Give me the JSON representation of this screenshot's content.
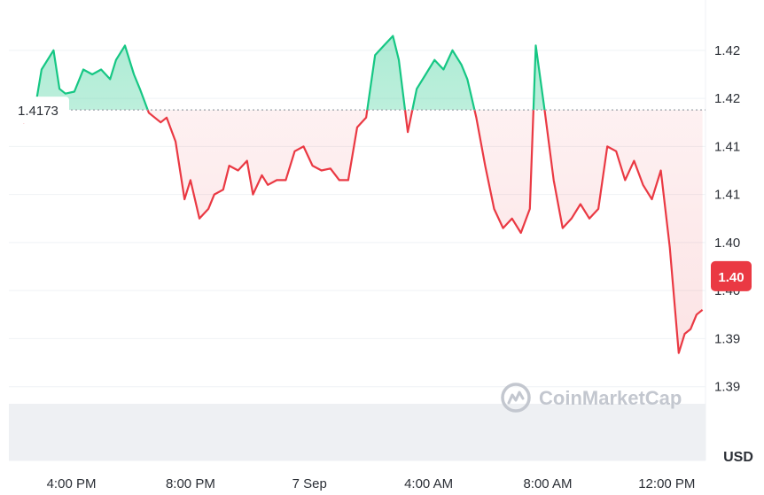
{
  "chart_data": {
    "type": "line",
    "title": "",
    "xlabel": "",
    "ylabel": "",
    "unit": "USD",
    "reference_value": 1.4173,
    "reference_label": "1.4173",
    "current_value": 1.4,
    "current_label": "1.40",
    "y_tick_labels": [
      "1.42",
      "1.42",
      "1.41",
      "1.41",
      "1.40",
      "1.40",
      "1.39",
      "1.39"
    ],
    "y_tick_values": [
      1.4235,
      1.4185,
      1.4135,
      1.4085,
      1.4035,
      1.3985,
      1.3935,
      1.3885
    ],
    "x_tick_labels": [
      "4:00 PM",
      "8:00 PM",
      "7 Sep",
      "4:00 AM",
      "8:00 AM",
      "12:00 PM"
    ],
    "x_tick_hours": [
      16,
      20,
      24,
      28,
      32,
      36
    ],
    "ylim": [
      1.3858,
      1.428
    ],
    "xlim": [
      13.9,
      37.3
    ],
    "grid": true,
    "colors": {
      "up": "#16c784",
      "down": "#ea3943",
      "up_fill": "#d5f5e8",
      "down_fill": "#fde4e5",
      "volume": "#eef0f3"
    },
    "watermark": "CoinMarketCap",
    "series": [
      {
        "x": [
          13.9,
          14.4,
          14.8,
          15.0,
          15.4,
          15.6,
          15.8,
          16.1,
          16.4,
          16.7,
          17.0,
          17.3,
          17.5,
          17.8,
          18.1,
          18.3,
          18.6,
          19.0,
          19.2,
          19.5,
          19.8,
          20.0,
          20.3,
          20.6,
          20.8,
          21.1,
          21.3,
          21.6,
          21.9,
          22.1,
          22.4,
          22.6,
          22.9,
          23.2,
          23.5,
          23.8,
          24.1,
          24.4,
          24.7,
          25.0,
          25.3,
          25.6,
          25.9,
          26.2,
          26.5,
          26.8,
          27.0,
          27.3,
          27.6,
          27.9,
          28.2,
          28.5,
          28.8,
          29.1,
          29.3,
          29.6,
          29.9,
          30.2,
          30.5,
          30.8,
          31.1,
          31.4,
          31.6,
          31.9,
          32.2,
          32.5,
          32.8,
          33.1,
          33.4,
          33.7,
          34.0,
          34.3,
          34.6,
          34.9,
          35.2,
          35.5,
          35.8,
          36.1,
          36.4,
          36.6,
          36.8,
          37.0,
          37.2
        ],
        "y": [
          1.4175,
          1.416,
          1.4178,
          1.4215,
          1.4235,
          1.4195,
          1.419,
          1.4192,
          1.4215,
          1.421,
          1.4215,
          1.4205,
          1.4225,
          1.424,
          1.421,
          1.4195,
          1.417,
          1.416,
          1.4165,
          1.414,
          1.408,
          1.41,
          1.406,
          1.407,
          1.4085,
          1.409,
          1.4115,
          1.411,
          1.412,
          1.4085,
          1.4105,
          1.4095,
          1.41,
          1.41,
          1.413,
          1.4135,
          1.4115,
          1.411,
          1.4112,
          1.41,
          1.41,
          1.4155,
          1.4165,
          1.423,
          1.424,
          1.425,
          1.4225,
          1.415,
          1.4195,
          1.421,
          1.4225,
          1.4215,
          1.4235,
          1.422,
          1.4205,
          1.4165,
          1.4115,
          1.407,
          1.405,
          1.406,
          1.4045,
          1.407,
          1.424,
          1.4172,
          1.41,
          1.405,
          1.406,
          1.4075,
          1.406,
          1.407,
          1.4135,
          1.413,
          1.41,
          1.412,
          1.4095,
          1.408,
          1.411,
          1.403,
          1.392,
          1.394,
          1.3945,
          1.396,
          1.3965
        ]
      }
    ]
  }
}
